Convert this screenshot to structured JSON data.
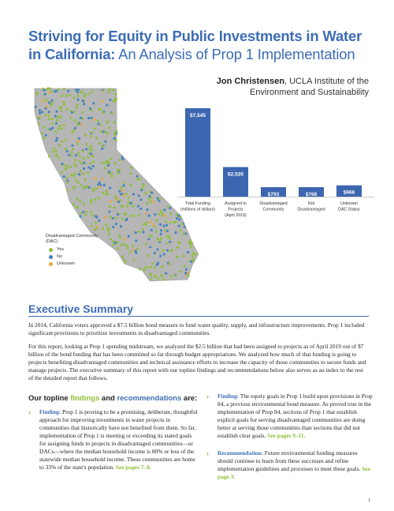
{
  "title": {
    "line1": "Striving for Equity in Public Investments in Water",
    "line2_bold": "in California:",
    "line2_light": " An Analysis of Prop 1 Implementation"
  },
  "author": {
    "name": "Jon Christensen",
    "affiliation": ", UCLA Institute of the Environment and Sustainability"
  },
  "map_legend": {
    "title": "Disadvantaged Community (DAC)",
    "items": [
      {
        "label": "Yes",
        "color": "#8fbf3a"
      },
      {
        "label": "No",
        "color": "#3d7fc1"
      },
      {
        "label": "Unknown",
        "color": "#f2a33a"
      }
    ]
  },
  "chart_data": {
    "type": "bar",
    "categories": [
      [
        "Total Funding",
        "(millions of dollars)"
      ],
      [
        "Assigned to",
        "Projects",
        "(April 2019)"
      ],
      [
        "Disadvantaged",
        "Community"
      ],
      [
        "Not",
        "Disadvantaged"
      ],
      [
        "Unknown",
        "DAC Status"
      ]
    ],
    "values": [
      7545,
      2526,
      793,
      768,
      966
    ],
    "labels": [
      "$7,545",
      "$2,526",
      "$793",
      "$768",
      "$966"
    ],
    "bar_color": "#3d66b0"
  },
  "executive_summary": {
    "heading": "Executive Summary",
    "p1": "In 2014, California voters approved a $7.5 billion bond measure to fund water quality, supply, and infrastructure improvements. Prop 1 included significant provisions to prioritize investments in disadvantaged communities.",
    "p2": "For this report, looking at Prop 1 spending midstream, we analyzed the $2.5 billion that had been assigned to projects as of April 2019 out of $7 billion of the bond funding that has been committed so far through budget appropriations. We analyzed how much of that funding is going to projects benefiting disadvantaged communities and technical assistance efforts to increase the capacity of those communities to secure funds and manage projects. The executive summary of this report with our topline findings and recommendations below also serves as an index to the rest of the detailed report that follows."
  },
  "topline": {
    "pre": "Our topline ",
    "findings": "findings",
    "and": " and ",
    "recommendations": "recommendations",
    "post": " are:"
  },
  "findings": [
    {
      "lead": "Finding:",
      "text": " Prop 1 is proving to be a promising, deliberate, thoughtful approach for improving investments in water projects in communities that historically have not benefited from them. So far, implementation of Prop 1 is meeting or exceeding its stated goals for assigning funds to projects in disadvantaged communities—or DACs—where the median household income is 80% or less of the statewide median household income. These communities are home to 33% of the state's population. ",
      "link": "See pages 7–8."
    },
    {
      "lead": "Finding:",
      "text": " The equity goals in Prop 1 build upon provisions in Prop 84, a previous environmental bond measure. As proved true in the implementation of Prop 84, sections of Prop 1 that establish explicit goals for serving disadvantaged communities are doing better at serving those communities than sections that did not establish clear goals. ",
      "link": "See pages 9–11."
    },
    {
      "lead": "Recommendation:",
      "text": " Future environmental funding measures should continue to learn from these successes and refine implementation guidelines and processes to meet these goals. ",
      "link": "See page 3."
    }
  ],
  "page_number": "1"
}
